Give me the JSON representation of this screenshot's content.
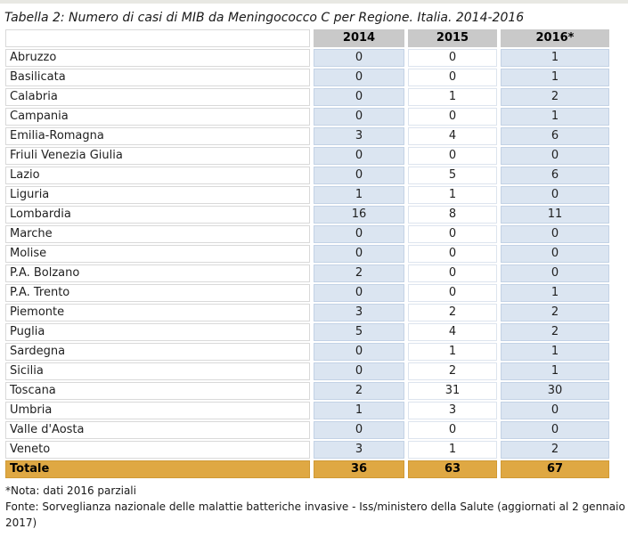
{
  "title": "Tabella 2: Numero di casi di MIB da Meningococco C per Regione. Italia. 2014-2016",
  "chart_data": {
    "type": "table",
    "columns": [
      "",
      "2014",
      "2015",
      "2016*"
    ],
    "rows": [
      [
        "Abruzzo",
        0,
        0,
        1
      ],
      [
        "Basilicata",
        0,
        0,
        1
      ],
      [
        "Calabria",
        0,
        1,
        2
      ],
      [
        "Campania",
        0,
        0,
        1
      ],
      [
        "Emilia-Romagna",
        3,
        4,
        6
      ],
      [
        "Friuli Venezia Giulia",
        0,
        0,
        0
      ],
      [
        "Lazio",
        0,
        5,
        6
      ],
      [
        "Liguria",
        1,
        1,
        0
      ],
      [
        "Lombardia",
        16,
        8,
        11
      ],
      [
        "Marche",
        0,
        0,
        0
      ],
      [
        "Molise",
        0,
        0,
        0
      ],
      [
        "P.A. Bolzano",
        2,
        0,
        0
      ],
      [
        "P.A. Trento",
        0,
        0,
        1
      ],
      [
        "Piemonte",
        3,
        2,
        2
      ],
      [
        "Puglia",
        5,
        4,
        2
      ],
      [
        "Sardegna",
        0,
        1,
        1
      ],
      [
        "Sicilia",
        0,
        2,
        1
      ],
      [
        "Toscana",
        2,
        31,
        30
      ],
      [
        "Umbria",
        1,
        3,
        0
      ],
      [
        "Valle d'Aosta",
        0,
        0,
        0
      ],
      [
        "Veneto",
        3,
        1,
        2
      ]
    ],
    "total_row": [
      "Totale",
      36,
      63,
      67
    ],
    "notes": [
      "*Nota: dati 2016 parziali",
      "Fonte: Sorveglianza nazionale delle malattie batteriche invasive - Iss/ministero della Salute (aggiornati al 2 gennaio 2017)"
    ]
  },
  "colors": {
    "header_bg": "#c9c9c9",
    "band_blue": "#dbe5f1",
    "band_blue_border": "#c3d2e5",
    "white_cell_border": "#dde4ee",
    "region_border": "#d9d9d9",
    "total_bg": "#dfa843",
    "total_border": "#d09a35",
    "text": "#1f1f1f",
    "top_strip": "#e8e8e3"
  }
}
